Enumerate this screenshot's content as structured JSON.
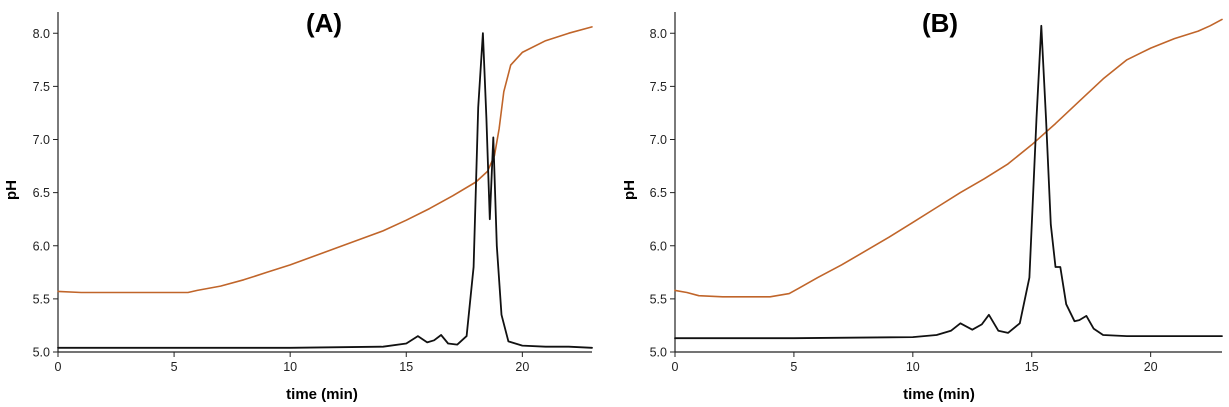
{
  "colors": {
    "ph_line": "#c0652a",
    "chromatogram": "#111111",
    "axis": "#222222"
  },
  "chart_data": [
    {
      "type": "line",
      "title": "(A)",
      "xlabel": "time (min)",
      "ylabel": "pH",
      "xlim": [
        0,
        23
      ],
      "ylim": [
        5.0,
        8.2
      ],
      "x_ticks": [
        0,
        5,
        10,
        15,
        20
      ],
      "x_tick_labels": [
        "0",
        "5",
        "10",
        "15",
        "20"
      ],
      "y_ticks": [
        5.0,
        5.5,
        6.0,
        6.5,
        7.0,
        7.5,
        8.0
      ],
      "y_tick_labels": [
        "5.0",
        "5.5",
        "6.0",
        "6.5",
        "7.0",
        "7.5",
        "8.0"
      ],
      "grid": false,
      "series": [
        {
          "color": "#c0652a",
          "x": [
            0,
            1,
            2,
            3,
            4,
            5,
            5.6,
            6,
            7,
            8,
            9,
            10,
            11,
            12,
            13,
            14,
            15,
            16,
            17,
            18,
            18.5,
            18.8,
            19.0,
            19.2,
            19.5,
            20,
            21,
            22,
            23
          ],
          "y": [
            5.57,
            5.56,
            5.56,
            5.56,
            5.56,
            5.56,
            5.56,
            5.58,
            5.62,
            5.68,
            5.75,
            5.82,
            5.9,
            5.98,
            6.06,
            6.14,
            6.24,
            6.35,
            6.47,
            6.6,
            6.7,
            6.85,
            7.1,
            7.45,
            7.7,
            7.82,
            7.93,
            8.0,
            8.06
          ]
        },
        {
          "color": "#111111",
          "x": [
            0,
            5,
            10,
            14,
            15.0,
            15.5,
            15.9,
            16.2,
            16.5,
            16.8,
            17.2,
            17.6,
            17.9,
            18.1,
            18.3,
            18.45,
            18.6,
            18.75,
            18.9,
            19.1,
            19.4,
            20,
            21,
            22,
            23
          ],
          "y": [
            5.04,
            5.04,
            5.04,
            5.05,
            5.08,
            5.15,
            5.09,
            5.11,
            5.16,
            5.08,
            5.07,
            5.15,
            5.8,
            7.3,
            8.0,
            7.2,
            6.25,
            7.02,
            6.0,
            5.35,
            5.1,
            5.06,
            5.05,
            5.05,
            5.04
          ]
        }
      ]
    },
    {
      "type": "line",
      "title": "(B)",
      "xlabel": "time (min)",
      "ylabel": "pH",
      "xlim": [
        0,
        23
      ],
      "ylim": [
        5.0,
        8.2
      ],
      "x_ticks": [
        0,
        5,
        10,
        15,
        20
      ],
      "x_tick_labels": [
        "0",
        "5",
        "10",
        "15",
        "20"
      ],
      "y_ticks": [
        5.0,
        5.5,
        6.0,
        6.5,
        7.0,
        7.5,
        8.0
      ],
      "y_tick_labels": [
        "5.0",
        "5.5",
        "6.0",
        "6.5",
        "7.0",
        "7.5",
        "8.0"
      ],
      "grid": false,
      "series": [
        {
          "color": "#c0652a",
          "x": [
            0,
            0.5,
            1,
            2,
            3,
            4,
            4.8,
            5.2,
            6,
            7,
            8,
            9,
            10,
            11,
            12,
            13,
            14,
            15,
            16,
            17,
            18,
            19,
            20,
            21,
            22,
            22.5,
            23
          ],
          "y": [
            5.58,
            5.56,
            5.53,
            5.52,
            5.52,
            5.52,
            5.55,
            5.6,
            5.7,
            5.82,
            5.95,
            6.08,
            6.22,
            6.36,
            6.5,
            6.63,
            6.77,
            6.95,
            7.15,
            7.36,
            7.57,
            7.75,
            7.86,
            7.95,
            8.02,
            8.07,
            8.13
          ]
        },
        {
          "color": "#111111",
          "x": [
            0,
            5,
            10,
            11,
            11.6,
            12.0,
            12.5,
            12.9,
            13.2,
            13.6,
            14.0,
            14.5,
            14.9,
            15.2,
            15.4,
            15.6,
            15.8,
            16.0,
            16.2,
            16.45,
            16.8,
            17.0,
            17.3,
            17.6,
            18,
            19,
            20,
            23
          ],
          "y": [
            5.13,
            5.13,
            5.14,
            5.16,
            5.2,
            5.27,
            5.21,
            5.26,
            5.35,
            5.2,
            5.18,
            5.27,
            5.7,
            7.2,
            8.07,
            7.2,
            6.2,
            5.8,
            5.8,
            5.45,
            5.29,
            5.3,
            5.34,
            5.22,
            5.16,
            5.15,
            5.15,
            5.15
          ]
        }
      ]
    }
  ]
}
